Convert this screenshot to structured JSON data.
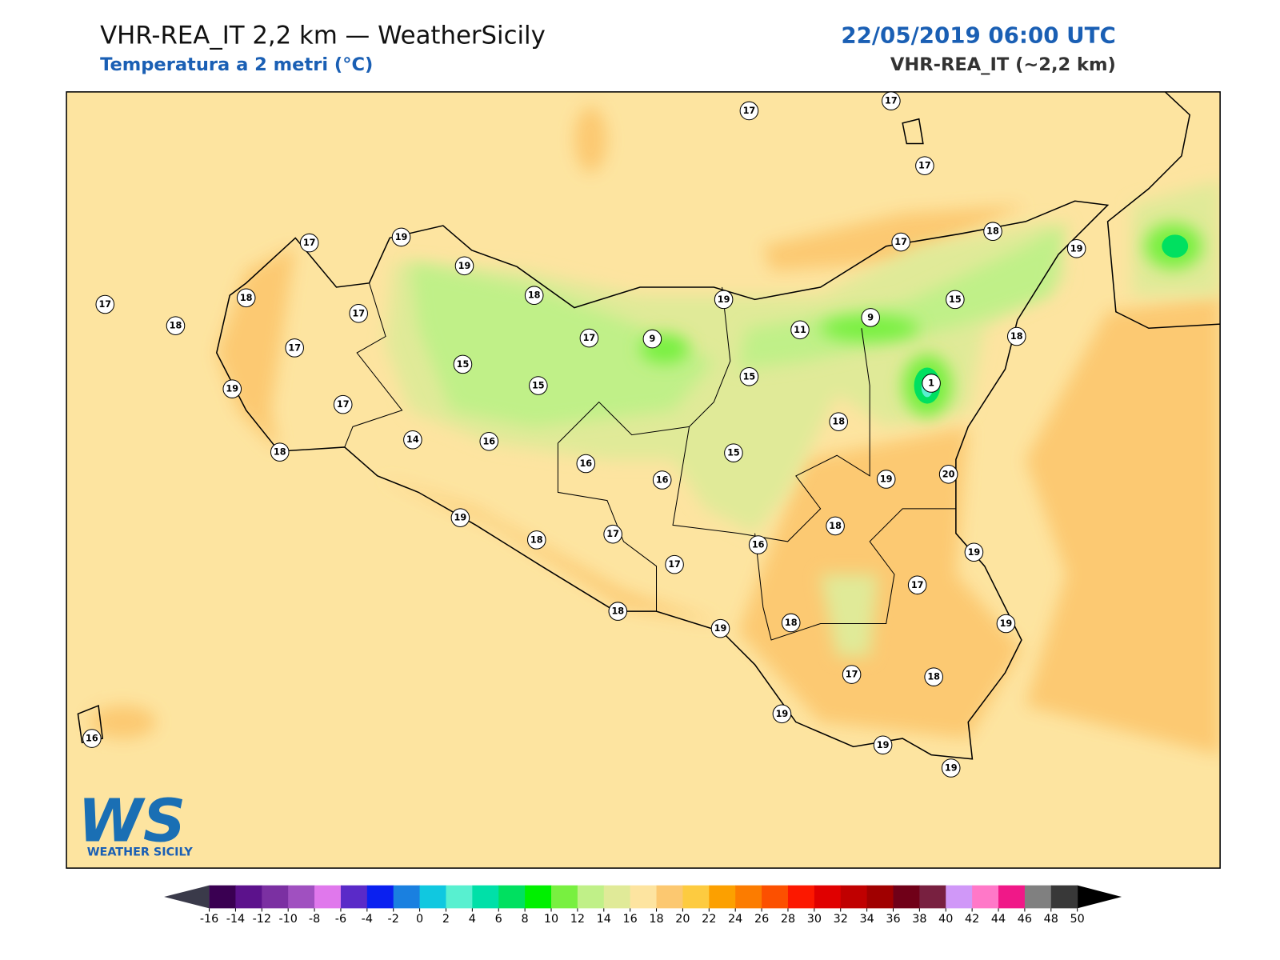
{
  "header": {
    "title": "VHR-REA_IT 2,2 km — WeatherSicily",
    "subtitle": "Temperatura a 2 metri (°C)",
    "datetime": "22/05/2019 06:00 UTC",
    "model": "VHR-REA_IT (~2,2 km)"
  },
  "stations": [
    17,
    17,
    17,
    17,
    19,
    19,
    18,
    17,
    18,
    17,
    17,
    19,
    17,
    18,
    14,
    16,
    15,
    18,
    17,
    9,
    15,
    19,
    11,
    9,
    17,
    18,
    19,
    15,
    18,
    15,
    1,
    18,
    15,
    19,
    20,
    16,
    16,
    18,
    19,
    17,
    18,
    19,
    17,
    16,
    17,
    18,
    19,
    18,
    19,
    17,
    18,
    19,
    19,
    19,
    16
  ],
  "colorbar": {
    "ticks": [
      -16,
      -14,
      -12,
      -10,
      -8,
      -6,
      -4,
      -2,
      0,
      2,
      4,
      6,
      8,
      10,
      12,
      14,
      16,
      18,
      20,
      22,
      24,
      26,
      28,
      30,
      32,
      34,
      36,
      38,
      40,
      42,
      44,
      46,
      48,
      50
    ],
    "colors": [
      "#3a0052",
      "#5c128c",
      "#7b30a2",
      "#a050c0",
      "#e078ec",
      "#5a2ac8",
      "#0a20f0",
      "#1a80e0",
      "#10c8e0",
      "#58f0d0",
      "#00e0a8",
      "#00e060",
      "#00f000",
      "#78f040",
      "#c0f088",
      "#e0ea98",
      "#fde4a0",
      "#fcc870",
      "#fdcb40",
      "#fca000",
      "#fc7c00",
      "#fc5000",
      "#fc1800",
      "#e00000",
      "#c00000",
      "#a00000",
      "#700018",
      "#782040",
      "#d098f8",
      "#ff78c8",
      "#f01888",
      "#808080",
      "#383838"
    ],
    "under": "#3a3a4a",
    "over": "#000000"
  },
  "logo": {
    "mark": "WS",
    "name": "WEATHER SICILY"
  }
}
